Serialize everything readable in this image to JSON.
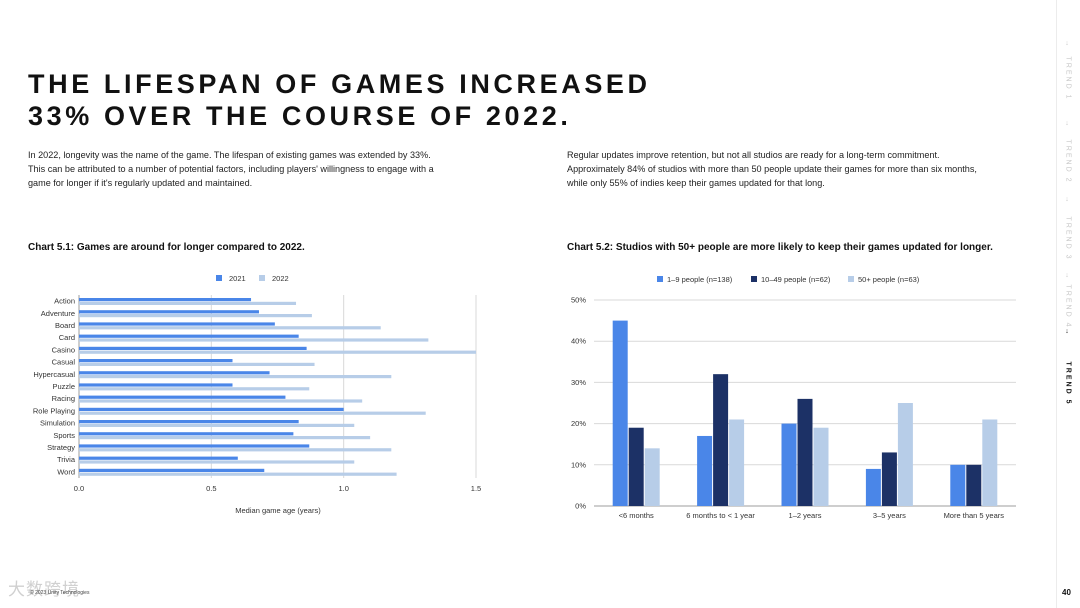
{
  "header": {
    "title_lines": [
      "THE LIFESPAN OF GAMES INCREASED",
      "33% OVER THE COURSE OF 2022."
    ]
  },
  "intro": {
    "left_lines": [
      "In 2022, longevity was the name of the game. The lifespan of existing games was extended by 33%.",
      "This can be attributed to a number of potential factors, including players' willingness to engage with a",
      "game for longer if it's regularly updated and maintained."
    ],
    "right_lines": [
      "Regular updates improve retention, but not all studios are ready for a long-term commitment.",
      "Approximately 84% of studios with more than 50 people update their games for more than six months,",
      "while only 55% of indies keep their games updated for that long."
    ]
  },
  "nav": {
    "items": [
      "TREND 1",
      "TREND 2",
      "TREND 3",
      "TREND 4",
      "TREND 5"
    ],
    "arrow": "↓",
    "active_index": 4,
    "page_number": "40"
  },
  "footer": {
    "copyright": "© 2023 Unity Technologies",
    "watermark": "大数跨境"
  },
  "colors": {
    "c2021": "#4a86e8",
    "c2022": "#b7cde8",
    "c19": "#4a86e8",
    "c1049": "#1c3166",
    "c50": "#b7cde8",
    "grid": "#d9d9d9",
    "axis_text": "#333333"
  },
  "chart_data": [
    {
      "type": "bar",
      "orientation": "horizontal",
      "title": "Chart 5.1: Games are around for longer compared to 2022.",
      "categories": [
        "Action",
        "Adventure",
        "Board",
        "Card",
        "Casino",
        "Casual",
        "Hypercasual",
        "Puzzle",
        "Racing",
        "Role Playing",
        "Simulation",
        "Sports",
        "Strategy",
        "Trivia",
        "Word"
      ],
      "series": [
        {
          "name": "2021",
          "values": [
            0.65,
            0.68,
            0.74,
            0.83,
            0.86,
            0.58,
            0.72,
            0.58,
            0.78,
            1.0,
            0.83,
            0.81,
            0.87,
            0.6,
            0.7
          ]
        },
        {
          "name": "2022",
          "values": [
            0.82,
            0.88,
            1.14,
            1.32,
            1.5,
            0.89,
            1.18,
            0.87,
            1.07,
            1.31,
            1.04,
            1.1,
            1.18,
            1.04,
            1.2
          ]
        }
      ],
      "xlabel": "Median game age (years)",
      "ylabel": "",
      "xlim": [
        0,
        1.5
      ],
      "ticks": [
        0,
        0.5,
        1,
        1.5
      ],
      "tick_labels": [
        "0.0",
        "0.5",
        "1.0",
        "1.5"
      ],
      "legend": "top-center"
    },
    {
      "type": "bar",
      "orientation": "vertical",
      "title": "Chart 5.2: Studios with 50+ people are more likely to keep their games updated for longer.",
      "categories": [
        "<6 months",
        "6 months to < 1 year",
        "1–2 years",
        "3–5 years",
        "More than 5 years"
      ],
      "series": [
        {
          "name": "1–9 people (n=138)",
          "values": [
            45,
            17,
            20,
            9,
            10
          ]
        },
        {
          "name": "10–49 people (n=62)",
          "values": [
            19,
            32,
            26,
            13,
            10
          ]
        },
        {
          "name": "50+ people (n=63)",
          "values": [
            14,
            21,
            19,
            25,
            21
          ]
        }
      ],
      "xlabel": "",
      "ylabel": "",
      "ylim": [
        0,
        50
      ],
      "ticks": [
        0,
        10,
        20,
        30,
        40,
        50
      ],
      "tick_labels": [
        "0%",
        "10%",
        "20%",
        "30%",
        "40%",
        "50%"
      ],
      "legend": "top-left"
    }
  ]
}
